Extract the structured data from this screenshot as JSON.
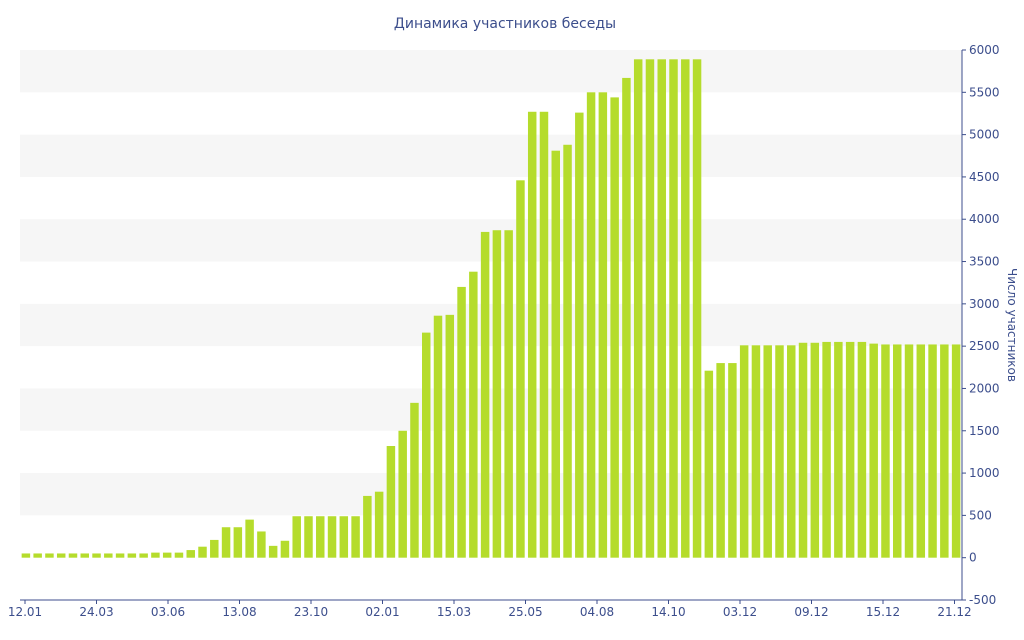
{
  "chart_data": {
    "type": "bar",
    "title": "Динамика участников беседы",
    "xlabel": "",
    "ylabel": "Число участников",
    "ylim": [
      -500,
      6000
    ],
    "yticks": [
      -500,
      0,
      500,
      1000,
      1500,
      2000,
      2500,
      3000,
      3500,
      4000,
      4500,
      5000,
      5500,
      6000
    ],
    "y_axis_side": "right",
    "grid": "alternating horizontal bands",
    "legend": "none",
    "bar_color": "#b5dc2c",
    "band_color": "#f6f6f6",
    "text_color": "#3c4e8c",
    "x_tick_labels": [
      "12.01",
      "24.03",
      "03.06",
      "13.08",
      "23.10",
      "02.01",
      "15.03",
      "25.05",
      "04.08",
      "14.10",
      "03.12",
      "09.12",
      "15.12",
      "21.12"
    ],
    "values": [
      50,
      50,
      50,
      50,
      50,
      50,
      50,
      50,
      50,
      50,
      50,
      60,
      60,
      60,
      90,
      130,
      210,
      360,
      360,
      450,
      310,
      140,
      200,
      490,
      490,
      490,
      490,
      490,
      490,
      730,
      780,
      1320,
      1500,
      1830,
      2660,
      2860,
      2870,
      3200,
      3380,
      3850,
      3870,
      3870,
      4460,
      5270,
      5270,
      4810,
      4880,
      5260,
      5500,
      5500,
      5440,
      5670,
      5890,
      5890,
      5890,
      5890,
      5890,
      5890,
      2210,
      2300,
      2300,
      2510,
      2510,
      2510,
      2510,
      2510,
      2540,
      2540,
      2550,
      2550,
      2550,
      2550,
      2530,
      2520,
      2520,
      2520,
      2520,
      2520,
      2520,
      2520
    ]
  }
}
